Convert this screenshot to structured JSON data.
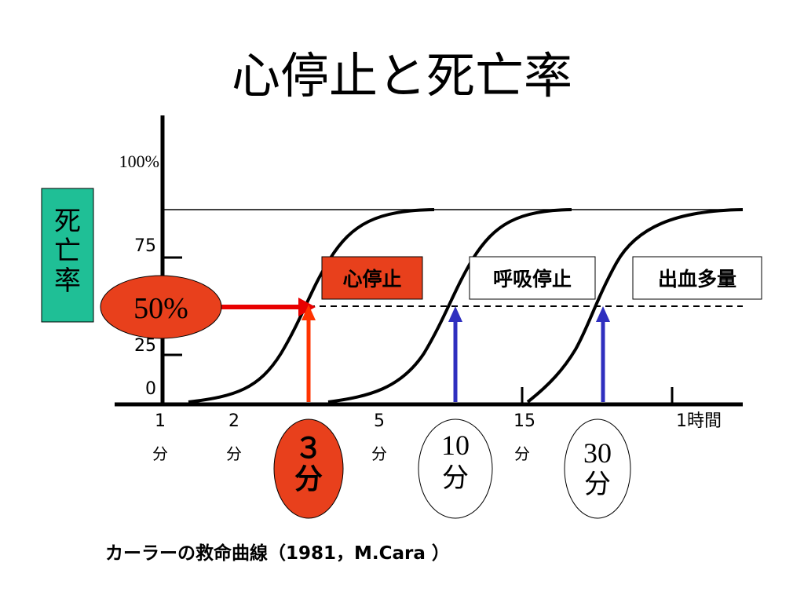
{
  "slide": {
    "title": "心停止と死亡率",
    "footer": "カーラーの救命曲線（1981，M.Cara ）"
  },
  "y_axis": {
    "label": [
      "死",
      "亡",
      "率"
    ],
    "ticks": [
      {
        "label": "100%",
        "value": 100
      },
      {
        "label": "75",
        "value": 75
      },
      {
        "label": "25",
        "value": 25
      },
      {
        "label": "0",
        "value": 0
      }
    ]
  },
  "x_axis": {
    "ticks": [
      {
        "top": "1",
        "bottom": "分"
      },
      {
        "top": "2",
        "bottom": "分"
      },
      {
        "top": "5",
        "bottom": "分"
      },
      {
        "top": "15",
        "bottom": "分"
      },
      {
        "top": "1時間",
        "bottom": ""
      }
    ]
  },
  "callouts": {
    "fifty_percent": "50%",
    "boxes": [
      {
        "label": "心停止",
        "fill": "#e8401c"
      },
      {
        "label": "呼吸停止",
        "fill": "#ffffff"
      },
      {
        "label": "出血多量",
        "fill": "#ffffff"
      }
    ],
    "time_ovals": [
      {
        "line1": "３",
        "line2": "分",
        "fill": "#e8401c"
      },
      {
        "line1": "10",
        "line2": "分",
        "fill": "#ffffff"
      },
      {
        "line1": "30",
        "line2": "分",
        "fill": "#ffffff"
      }
    ]
  },
  "colors": {
    "axis_label_bg": "#1fbf96",
    "red_arrow": "#e80000",
    "orange_arrow": "#ff3300",
    "blue_arrow": "#2f2fbf"
  },
  "chart_data": {
    "type": "line",
    "x_categories": [
      "1分",
      "2分",
      "3分",
      "5分",
      "10分",
      "15分",
      "30分",
      "1時間"
    ],
    "ylim": [
      0,
      100
    ],
    "series": [
      {
        "name": "心停止",
        "fifty_percent_at": "3分",
        "points": [
          [
            "1分",
            0
          ],
          [
            "2分",
            5
          ],
          [
            "3分",
            50
          ],
          [
            "5分",
            95
          ],
          [
            "10分",
            100
          ]
        ]
      },
      {
        "name": "呼吸停止",
        "fifty_percent_at": "10分",
        "points": [
          [
            "3分",
            0
          ],
          [
            "5分",
            8
          ],
          [
            "10分",
            50
          ],
          [
            "15分",
            95
          ],
          [
            "30分",
            100
          ]
        ]
      },
      {
        "name": "出血多量",
        "fifty_percent_at": "30分",
        "points": [
          [
            "15分",
            0
          ],
          [
            "30分",
            50
          ],
          [
            "1時間",
            100
          ]
        ]
      }
    ],
    "reference_line_at": 50,
    "plateau_line_at": 100
  }
}
